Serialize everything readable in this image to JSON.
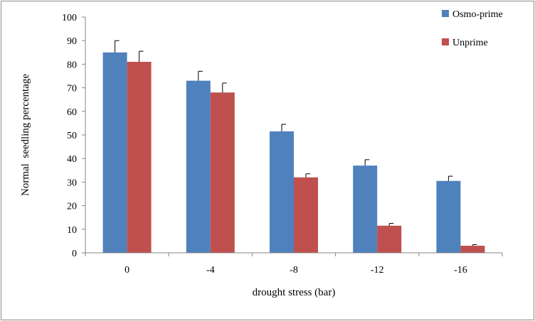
{
  "chart_data": {
    "type": "bar",
    "title": "",
    "xlabel": "drought stress (bar)",
    "ylabel": "Normal  seedling percentage",
    "ylim": [
      0,
      100
    ],
    "yticks": [
      0,
      10,
      20,
      30,
      40,
      50,
      60,
      70,
      80,
      90,
      100
    ],
    "yticks_labels": [
      "0",
      "10",
      "20",
      "30",
      "40",
      "50",
      "60",
      "70",
      "80",
      "90",
      "100"
    ],
    "categories": [
      "0",
      "-4",
      "-8",
      "-12",
      "-16"
    ],
    "grid": false,
    "legend_position": "top-right",
    "series": [
      {
        "name": "Osmo-prime",
        "color": "#4f81bd",
        "values": [
          85,
          73,
          51.5,
          37,
          30.5
        ],
        "errors": [
          5,
          4,
          3,
          2.5,
          2
        ]
      },
      {
        "name": "Unprime",
        "color": "#c0504d",
        "values": [
          81,
          68,
          32,
          11.5,
          3
        ],
        "errors": [
          4.5,
          4,
          1.5,
          1,
          0.5
        ]
      }
    ]
  }
}
